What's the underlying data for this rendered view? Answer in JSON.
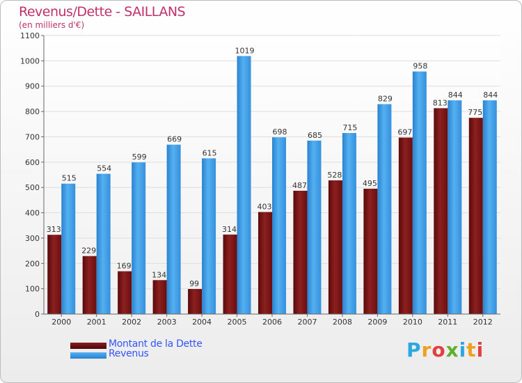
{
  "title": "Revenus/Dette - SAILLANS",
  "subtitle": "(en milliers d'€)",
  "colors": {
    "dette": "#7a1414",
    "revenus": "#3a9ae6",
    "title": "#c0306c",
    "legend_text": "#3355ff"
  },
  "legend": {
    "dette_label": "Montant de la Dette",
    "revenus_label": "Revenus"
  },
  "logo": {
    "text": "Proxiti"
  },
  "chart_data": {
    "type": "bar",
    "title": "Revenus/Dette - SAILLANS",
    "ylabel": "(en milliers d'€)",
    "xlabel": "",
    "categories": [
      "2000",
      "2001",
      "2002",
      "2003",
      "2004",
      "2005",
      "2006",
      "2007",
      "2008",
      "2009",
      "2010",
      "2011",
      "2012"
    ],
    "series": [
      {
        "name": "Montant de la Dette",
        "values": [
          313,
          229,
          169,
          134,
          99,
          314,
          403,
          487,
          528,
          495,
          697,
          813,
          775
        ]
      },
      {
        "name": "Revenus",
        "values": [
          515,
          554,
          599,
          669,
          615,
          1019,
          698,
          685,
          715,
          829,
          958,
          844,
          844
        ]
      }
    ],
    "ylim": [
      0,
      1100
    ],
    "yticks": [
      0,
      100,
      200,
      300,
      400,
      500,
      600,
      700,
      800,
      900,
      1000,
      1100
    ],
    "grid": true,
    "legend_position": "bottom-left"
  }
}
